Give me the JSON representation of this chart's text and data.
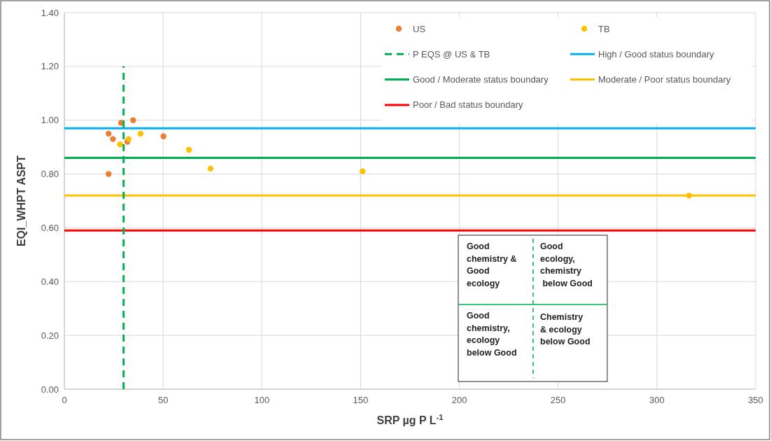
{
  "chart_data": {
    "type": "scatter",
    "xlabel": "SRP µg P L$^{-1}$",
    "ylabel": "EQI_WHPT ASPT",
    "xlim": [
      0,
      350
    ],
    "xticks": [
      0,
      50,
      100,
      150,
      200,
      250,
      300,
      350
    ],
    "ylim": [
      0,
      1.4
    ],
    "yticks": [
      {
        "value": 0,
        "label": "0.00"
      },
      {
        "value": 0.2,
        "label": "0.20"
      },
      {
        "value": 0.4,
        "label": "0.40"
      },
      {
        "value": 0.6,
        "label": "0.60"
      },
      {
        "value": 0.8,
        "label": "0.80"
      },
      {
        "value": 1,
        "label": "1.00"
      },
      {
        "value": 1.2,
        "label": "1.20"
      },
      {
        "value": 1.4,
        "label": "1.40"
      }
    ],
    "grid": true,
    "legend": "top right",
    "marker": "circle",
    "series": [
      {
        "name": "US",
        "color": "#ed7d31",
        "x": [
          28.7,
          34.8,
          22.4,
          24.6,
          31.9,
          50.2,
          22.4
        ],
        "values": [
          0.99,
          1.0,
          0.95,
          0.93,
          0.92,
          0.94,
          0.8
        ]
      },
      {
        "name": "TB",
        "color": "#ffc000",
        "x": [
          38.6,
          32.5,
          28.2,
          63.1,
          74.0,
          151.0,
          316.3
        ],
        "values": [
          0.95,
          0.93,
          0.91,
          0.89,
          0.82,
          0.81,
          0.72
        ]
      },
      {
        "name": "P EQS @ US & TB",
        "type": "line",
        "marker": "none",
        "line_style": "dashed",
        "color": "#00b050",
        "x": [
          30,
          30
        ],
        "values": [
          0,
          1.2
        ]
      }
    ],
    "ref_lines": [
      {
        "axis": "y",
        "value": 0.97,
        "label": "High / Good status boundary",
        "color": "#00b0f0"
      },
      {
        "axis": "y",
        "value": 0.86,
        "label": "Good / Moderate status boundary",
        "color": "#00b050"
      },
      {
        "axis": "y",
        "value": 0.72,
        "label": "Moderate / Poor status boundary",
        "color": "#ffc000"
      },
      {
        "axis": "y",
        "value": 0.59,
        "label": "Poor / Bad status boundary",
        "color": "#ff0000"
      }
    ],
    "annotations": [
      "Good\nchemistry &\nGood\necology",
      "Good\necology,\nchemistry\n below Good",
      "Good\nchemistry,\necology\nbelow Good",
      "Chemistry\n& ecology\nbelow Good"
    ]
  }
}
